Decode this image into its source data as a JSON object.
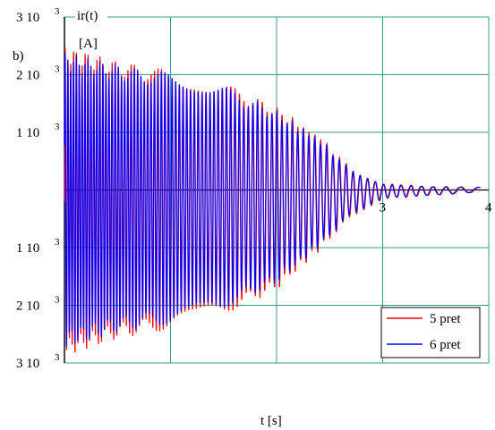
{
  "chart_data": {
    "type": "line",
    "panel_label": "b)",
    "ylabel": "ir(t)",
    "ylabel_unit": "[A]",
    "xlabel": "t [s]",
    "xlim": [
      0,
      4
    ],
    "ylim": [
      -3000,
      3000
    ],
    "x_ticks": [
      {
        "value": 3,
        "label": "3"
      },
      {
        "value": 4,
        "label": "4"
      }
    ],
    "y_ticks": [
      {
        "value": 3000,
        "label": "3 10",
        "exp": "3"
      },
      {
        "value": 2000,
        "label": "2 10",
        "exp": "3"
      },
      {
        "value": 1000,
        "label": "1 10",
        "exp": "3"
      },
      {
        "value": -1000,
        "label": "1 10",
        "exp": "3"
      },
      {
        "value": -2000,
        "label": "2 10",
        "exp": "3"
      },
      {
        "value": -3000,
        "label": "3 10",
        "exp": "3"
      }
    ],
    "grid": true,
    "legend_position": "bottom-right",
    "series": [
      {
        "name": "5 pret",
        "color": "#ff0000",
        "envelope": [
          {
            "t": 0.0,
            "upper": 2350,
            "lower": -2750
          },
          {
            "t": 0.5,
            "upper": 2100,
            "lower": -2450
          },
          {
            "t": 1.0,
            "upper": 1950,
            "lower": -2300
          },
          {
            "t": 1.5,
            "upper": 1750,
            "lower": -2050
          },
          {
            "t": 2.0,
            "upper": 1350,
            "lower": -1650
          },
          {
            "t": 2.4,
            "upper": 900,
            "lower": -1000
          },
          {
            "t": 2.7,
            "upper": 350,
            "lower": -450
          },
          {
            "t": 3.0,
            "upper": 100,
            "lower": -150
          },
          {
            "t": 3.5,
            "upper": 60,
            "lower": -90
          },
          {
            "t": 3.9,
            "upper": 50,
            "lower": -40
          }
        ]
      },
      {
        "name": "6 pret",
        "color": "#0000ff",
        "envelope": [
          {
            "t": 0.0,
            "upper": 2250,
            "lower": -2600
          },
          {
            "t": 0.5,
            "upper": 2050,
            "lower": -2350
          },
          {
            "t": 1.0,
            "upper": 1900,
            "lower": -2200
          },
          {
            "t": 1.5,
            "upper": 1700,
            "lower": -1950
          },
          {
            "t": 2.0,
            "upper": 1300,
            "lower": -1550
          },
          {
            "t": 2.4,
            "upper": 850,
            "lower": -950
          },
          {
            "t": 2.7,
            "upper": 330,
            "lower": -420
          },
          {
            "t": 3.0,
            "upper": 100,
            "lower": -140
          },
          {
            "t": 3.5,
            "upper": 55,
            "lower": -85
          },
          {
            "t": 3.9,
            "upper": 45,
            "lower": -35
          }
        ]
      }
    ]
  }
}
